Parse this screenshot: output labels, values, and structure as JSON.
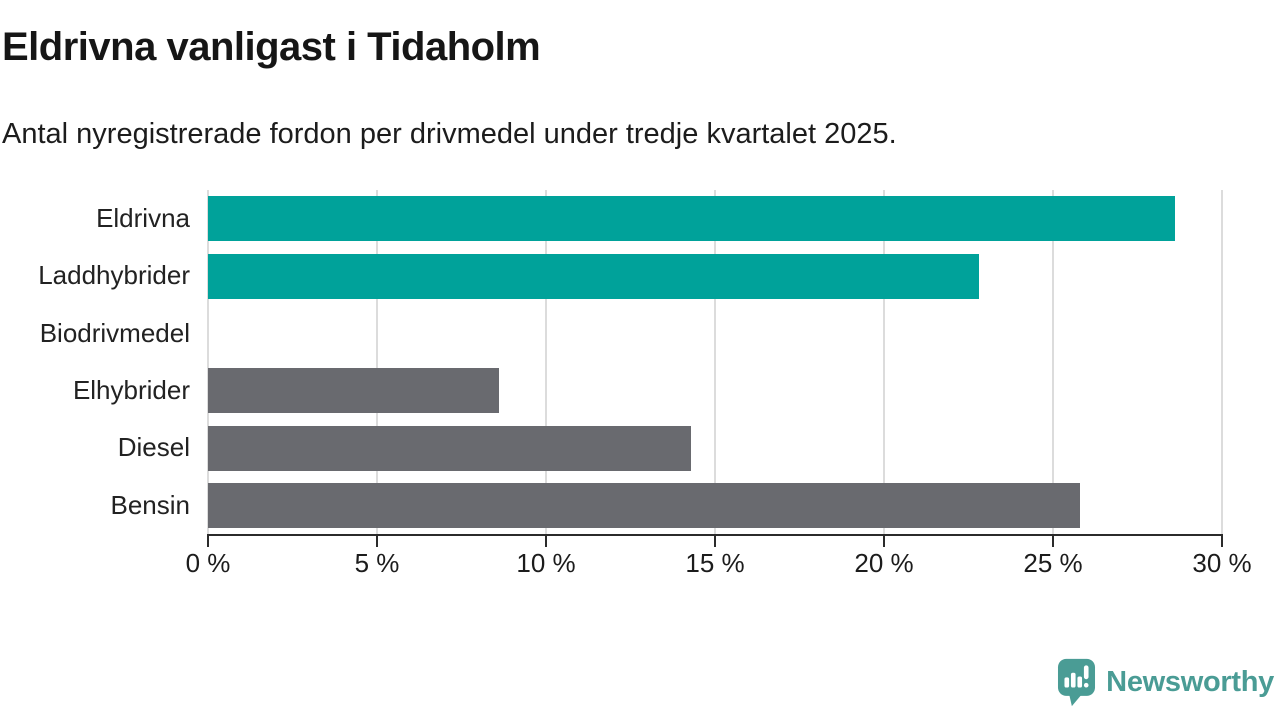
{
  "header": {
    "title": "Eldrivna vanligast i Tidaholm",
    "subtitle": "Antal nyregistrerade fordon per drivmedel under tredje kvartalet 2025."
  },
  "chart_data": {
    "type": "bar",
    "orientation": "horizontal",
    "title": "Eldrivna vanligast i Tidaholm",
    "subtitle": "Antal nyregistrerade fordon per drivmedel under tredje kvartalet 2025.",
    "categories": [
      "Eldrivna",
      "Laddhybrider",
      "Biodrivmedel",
      "Elhybrider",
      "Diesel",
      "Bensin"
    ],
    "values": [
      28.6,
      22.8,
      0,
      8.6,
      14.3,
      25.8
    ],
    "unit": "%",
    "bar_colors": [
      "#00A29A",
      "#00A29A",
      "#00A29A",
      "#696A6F",
      "#696A6F",
      "#696A6F"
    ],
    "xlabel": "",
    "ylabel": "",
    "xlim": [
      0,
      30
    ],
    "x_tick_values": [
      0,
      5,
      10,
      15,
      20,
      25,
      30
    ],
    "x_tick_labels": [
      "0 %",
      "5 %",
      "10 %",
      "15 %",
      "20 %",
      "25 %",
      "30 %"
    ],
    "grid": "vertical gridlines at ticks, behind bars",
    "legend": "none",
    "colors": {
      "highlight": "#00A29A",
      "default": "#696A6F",
      "gridline": "#DCDCDC",
      "axis": "#2B2B2B",
      "text": "#1A1A1A"
    }
  },
  "branding": {
    "logo_text": "Newsworthy",
    "logo_color": "#4A9C95",
    "logo_icon": "speech-bubble-with-bar-chart-and-exclamation"
  }
}
